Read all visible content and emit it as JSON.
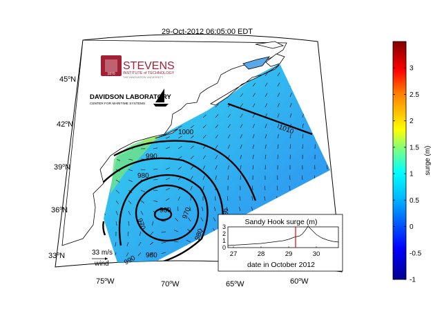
{
  "title": "29-Oct-2012 06:05:00 EDT",
  "logos": {
    "stevens_name": "STEVENS",
    "stevens_sub": "INSTITUTE of TECHNOLOGY",
    "stevens_tag": "THE INNOVATION UNIVERSITY",
    "stevens_year": "1870",
    "davidson_name": "DAVIDSON LABORATORY",
    "davidson_sub": "CENTER FOR MARITIME SYSTEMS"
  },
  "map": {
    "lat_labels": [
      "45",
      "42",
      "39",
      "36",
      "33"
    ],
    "lat_suffix": "N",
    "lon_labels": [
      "75",
      "70",
      "65",
      "60"
    ],
    "lon_suffix": "W",
    "degree_mark": "o",
    "pressure_contours": [
      "960",
      "970",
      "980",
      "990",
      "1000",
      "1010",
      "960",
      "980",
      "980",
      "990",
      "990"
    ],
    "wind_scale": {
      "value_label": "33 m/s",
      "label": "wind"
    }
  },
  "inset": {
    "title": "Sandy Hook surge (m)",
    "xlabel": "date in October 2012",
    "x_ticks": [
      "27",
      "28",
      "29",
      "30"
    ],
    "y_ticks": [
      "3",
      "2",
      "1",
      "0"
    ]
  },
  "colorbar": {
    "label": "surge (m)",
    "ticks": [
      "3",
      "2.5",
      "2",
      "1.5",
      "1",
      "0.5",
      "0",
      "-0.5",
      "-1"
    ],
    "min": -1,
    "max": 3.5,
    "colors": {
      "max": "#800000",
      "high": "#ff0000",
      "mid_high": "#ffff00",
      "mid": "#00ffff",
      "low": "#0000ff",
      "min": "#000080"
    }
  },
  "chart_data": {
    "type": "line",
    "title": "Sandy Hook surge (m)",
    "xlabel": "date in October 2012",
    "ylabel": "",
    "xlim": [
      26.8,
      30.8
    ],
    "ylim": [
      0,
      3
    ],
    "current_time_marker": 29.25,
    "series": [
      {
        "x": [
          26.8,
          27.0,
          27.2,
          27.4,
          27.6,
          27.8,
          28.0,
          28.2,
          28.4,
          28.6,
          28.8,
          29.0,
          29.2,
          29.4,
          29.5,
          29.6,
          29.7,
          29.8,
          29.9,
          30.0,
          30.2,
          30.4,
          30.6,
          30.8
        ],
        "y": [
          0.3,
          0.35,
          0.4,
          0.45,
          0.5,
          0.55,
          0.6,
          0.7,
          0.8,
          0.9,
          1.0,
          1.2,
          1.5,
          1.7,
          2.0,
          2.5,
          3.1,
          2.7,
          2.3,
          1.9,
          1.4,
          1.1,
          0.9,
          0.8
        ]
      }
    ]
  }
}
